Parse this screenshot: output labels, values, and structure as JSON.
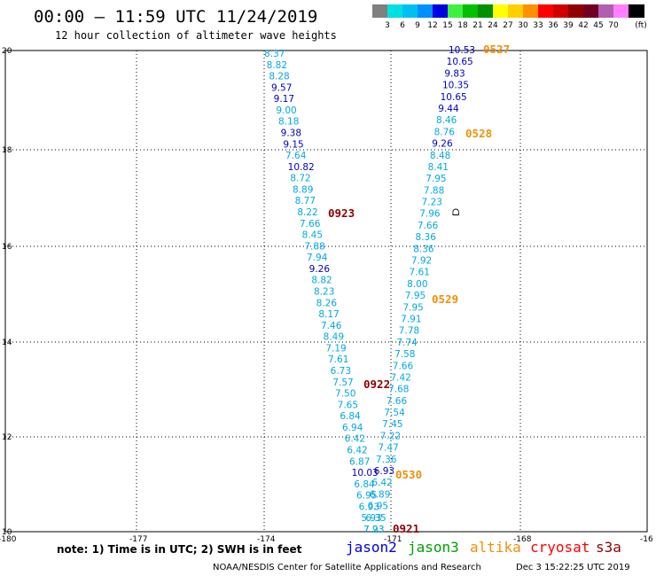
{
  "header": {
    "title": "00:00 – 11:59 UTC 11/24/2019",
    "subtitle": "12 hour collection of altimeter wave heights"
  },
  "color_scale": {
    "unit_label": "(ft)",
    "entries": [
      {
        "label": "",
        "color": "#808080"
      },
      {
        "label": "3",
        "color": "#00e0e0"
      },
      {
        "label": "6",
        "color": "#00c0f0"
      },
      {
        "label": "9",
        "color": "#0090ff"
      },
      {
        "label": "12",
        "color": "#0000e0"
      },
      {
        "label": "15",
        "color": "#40f040"
      },
      {
        "label": "18",
        "color": "#00c000"
      },
      {
        "label": "21",
        "color": "#009000"
      },
      {
        "label": "24",
        "color": "#ffff00"
      },
      {
        "label": "27",
        "color": "#ffd000"
      },
      {
        "label": "30",
        "color": "#ff9000"
      },
      {
        "label": "33",
        "color": "#ff0000"
      },
      {
        "label": "36",
        "color": "#d00000"
      },
      {
        "label": "39",
        "color": "#900000"
      },
      {
        "label": "42",
        "color": "#700020"
      },
      {
        "label": "45",
        "color": "#b060b0"
      },
      {
        "label": "70",
        "color": "#ff80ff"
      },
      {
        "label": "",
        "color": "#000000"
      }
    ]
  },
  "axes": {
    "lon_labels": [
      "-180",
      "-177",
      "-174",
      "-171",
      "-168",
      "-16"
    ],
    "lat_labels": [
      "20",
      "18",
      "16",
      "14",
      "12",
      "10"
    ]
  },
  "colors": {
    "light": "#00a8e0",
    "dark": "#0000c0",
    "time_orange": "#f0900a",
    "time_red": "#8b0000"
  },
  "tracks": {
    "track_a": {
      "values": [
        "8.37",
        "8.82",
        "8.28",
        "9.57",
        "9.17",
        "9.00",
        "8.18",
        "9.38",
        "9.15",
        "7.64",
        "10.82",
        "8.72",
        "8.89",
        "8.77",
        "8.22",
        "7.66",
        "8.45",
        "7.88",
        "7.94",
        "9.26",
        "8.82",
        "8.23",
        "8.26",
        "8.17",
        "7.46",
        "8.49",
        "7.19",
        "7.61",
        "6.73",
        "7.57",
        "7.50",
        "7.65",
        "6.84",
        "6.94",
        "6.42",
        "6.42",
        "6.87",
        "10.03",
        "6.84",
        "6.95",
        "6.93",
        "5.93",
        "7.23"
      ],
      "dark_indices": [
        3,
        4,
        7,
        8,
        10,
        19,
        37
      ]
    },
    "track_b": {
      "values": [
        "10.53",
        "10.65",
        "9.83",
        "10.35",
        "10.65",
        "9.44",
        "8.46",
        "8.76",
        "9.26",
        "8.48",
        "8.41",
        "7.95",
        "7.88",
        "7.23",
        "7.96",
        "7.66",
        "8.36",
        "8.36",
        "7.92",
        "7.61",
        "8.00",
        "7.95",
        "7.95",
        "7.91",
        "7.78",
        "7.74",
        "7.58",
        "7.66",
        "7.42",
        "7.68",
        "7.66",
        "7.54",
        "7.45",
        "7.22",
        "7.47",
        "7.36",
        "6.93",
        "6.42",
        "6.89",
        "6.95",
        "6.35",
        "7.93"
      ],
      "dark_indices": [
        0,
        1,
        2,
        3,
        4,
        5,
        8,
        36
      ]
    }
  },
  "time_labels": [
    {
      "text": "0527",
      "color": "orange"
    },
    {
      "text": "0528",
      "color": "orange"
    },
    {
      "text": "0923",
      "color": "red"
    },
    {
      "text": "0529",
      "color": "orange"
    },
    {
      "text": "0922",
      "color": "red"
    },
    {
      "text": "0530",
      "color": "orange"
    },
    {
      "text": "0921",
      "color": "red"
    }
  ],
  "footer": {
    "note": "note:  1) Time is in UTC;  2) SWH is in feet",
    "satellites": [
      {
        "name": "jason2",
        "color": "#0000e0"
      },
      {
        "name": "jason3",
        "color": "#00a000"
      },
      {
        "name": "altika",
        "color": "#f0900a"
      },
      {
        "name": "cryosat",
        "color": "#ff0000"
      },
      {
        "name": "s3a",
        "color": "#900000"
      }
    ],
    "credit": "NOAA/NESDIS Center for Satellite Applications and Research",
    "timestamp": "Dec  3 15:22:25 UTC 2019"
  }
}
